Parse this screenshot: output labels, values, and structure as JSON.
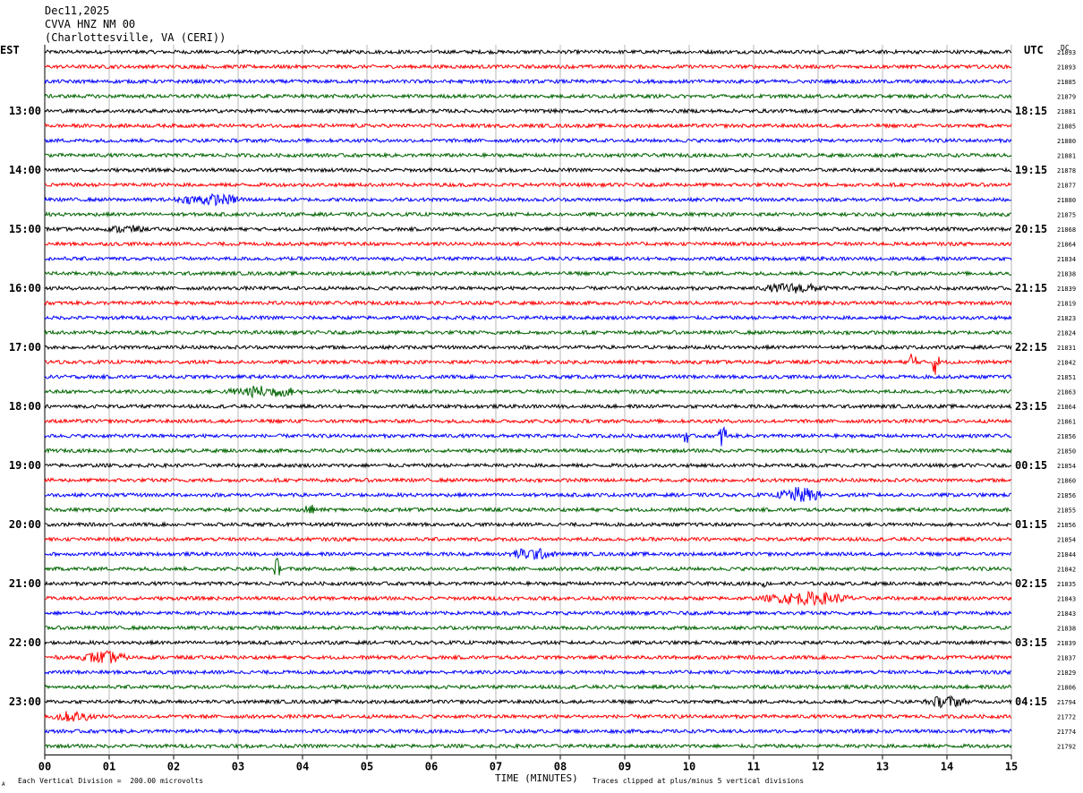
{
  "header": {
    "date": "Dec11,2025",
    "station": "CVVA HNZ NM 00",
    "location": "(Charlottesville, VA (CERI))"
  },
  "left_axis_label": "EST",
  "right_axis_label": "UTC",
  "dc_label": "DC",
  "footer": {
    "scale_note": "Each Vertical Division =  200.00 microvolts",
    "xlabel": "TIME (MINUTES)",
    "clip_note": "Traces clipped at plus/minus 5 vertical divisions",
    "corner_mark": "A"
  },
  "colors": [
    "#000000",
    "#ff0000",
    "#0000ff",
    "#006400"
  ],
  "chart_data": {
    "type": "line",
    "xlim": [
      0,
      15
    ],
    "x_ticks": [
      "00",
      "01",
      "02",
      "03",
      "04",
      "05",
      "06",
      "07",
      "08",
      "09",
      "10",
      "11",
      "12",
      "13",
      "14",
      "15"
    ],
    "minutes_per_trace": 15,
    "traces_per_hour": 4,
    "n_traces": 48,
    "est_hour_labels": [
      "13:00",
      "14:00",
      "15:00",
      "16:00",
      "17:00",
      "18:00",
      "19:00",
      "20:00",
      "21:00",
      "22:00",
      "23:00"
    ],
    "utc_hour_labels": [
      "18:15",
      "19:15",
      "20:15",
      "21:15",
      "22:15",
      "23:15",
      "00:15",
      "01:15",
      "02:15",
      "03:15",
      "04:15"
    ],
    "dc_offsets": [
      21893,
      21893,
      21885,
      21879,
      21881,
      21885,
      21880,
      21881,
      21878,
      21877,
      21880,
      21875,
      21868,
      21864,
      21834,
      21838,
      21839,
      21819,
      21823,
      21824,
      21831,
      21842,
      21851,
      21863,
      21864,
      21861,
      21856,
      21850,
      21854,
      21860,
      21856,
      21855,
      21856,
      21854,
      21844,
      21842,
      21835,
      21843,
      21843,
      21838,
      21839,
      21837,
      21829,
      21806,
      21794,
      21772,
      21774,
      21792
    ],
    "noise_amplitude_divisions": 0.4,
    "clip_divisions": 5,
    "events": [
      {
        "trace": 10,
        "start_min": 1.9,
        "end_min": 4.3,
        "amplitude": 1.3
      },
      {
        "trace": 12,
        "start_min": 0.9,
        "end_min": 2.2,
        "amplitude": 1.0
      },
      {
        "trace": 16,
        "start_min": 11.0,
        "end_min": 13.2,
        "amplitude": 1.2
      },
      {
        "trace": 21,
        "start_min": 13.4,
        "end_min": 13.65,
        "amplitude": 3.0
      },
      {
        "trace": 21,
        "start_min": 13.75,
        "end_min": 14.0,
        "amplitude": 3.0
      },
      {
        "trace": 23,
        "start_min": 2.7,
        "end_min": 5.2,
        "amplitude": 1.4
      },
      {
        "trace": 26,
        "start_min": 9.9,
        "end_min": 10.05,
        "amplitude": 3.0
      },
      {
        "trace": 26,
        "start_min": 10.45,
        "end_min": 10.7,
        "amplitude": 3.2
      },
      {
        "trace": 30,
        "start_min": 11.3,
        "end_min": 12.8,
        "amplitude": 1.8
      },
      {
        "trace": 31,
        "start_min": 4.0,
        "end_min": 4.4,
        "amplitude": 1.3
      },
      {
        "trace": 34,
        "start_min": 7.1,
        "end_min": 8.7,
        "amplitude": 1.4
      },
      {
        "trace": 35,
        "start_min": 3.55,
        "end_min": 3.75,
        "amplitude": 2.5
      },
      {
        "trace": 36,
        "start_min": 11.1,
        "end_min": 11.3,
        "amplitude": 1.0
      },
      {
        "trace": 37,
        "start_min": 11.0,
        "end_min": 14.0,
        "amplitude": 1.5
      },
      {
        "trace": 41,
        "start_min": 0.5,
        "end_min": 2.0,
        "amplitude": 1.5
      },
      {
        "trace": 44,
        "start_min": 13.6,
        "end_min": 15.0,
        "amplitude": 1.4
      },
      {
        "trace": 45,
        "start_min": 0.0,
        "end_min": 1.5,
        "amplitude": 1.3
      }
    ]
  }
}
